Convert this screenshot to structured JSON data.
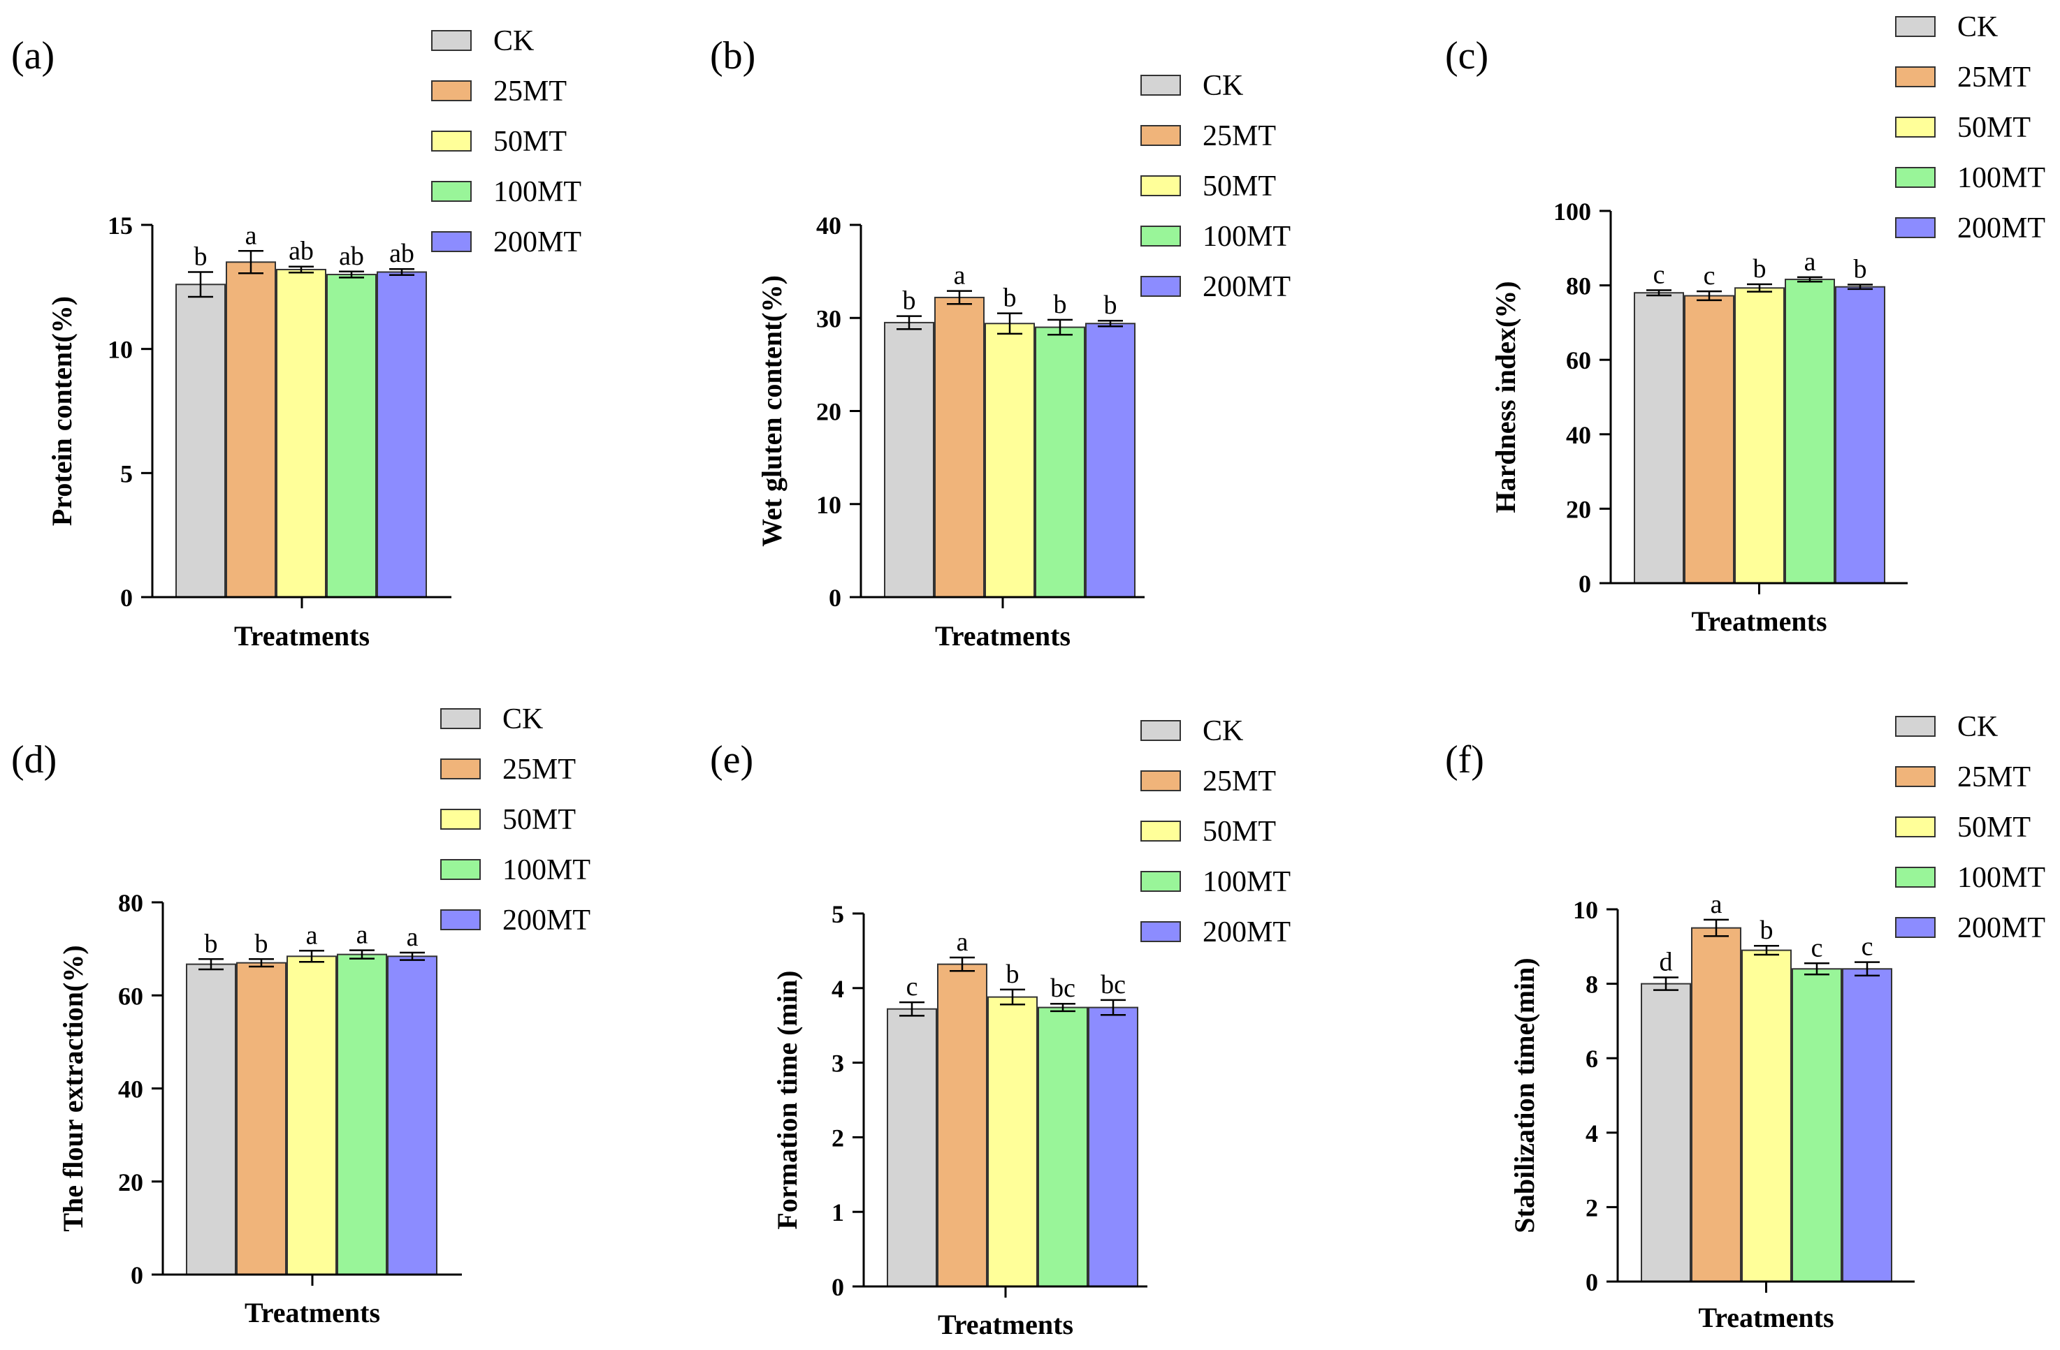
{
  "figure": {
    "series": [
      "CK",
      "25MT",
      "50MT",
      "100MT",
      "200MT"
    ],
    "colors": [
      "#d4d4d4",
      "#f0b47a",
      "#ffff99",
      "#99f599",
      "#8c8cff"
    ]
  },
  "chart_data": [
    {
      "type": "bar",
      "panel": "(a)",
      "title": "",
      "xlabel": "Treatments",
      "ylabel": "Protein content(%)",
      "ylim": [
        0,
        15
      ],
      "yticks": [
        0,
        5,
        10,
        15
      ],
      "categories": [
        "CK",
        "25MT",
        "50MT",
        "100MT",
        "200MT"
      ],
      "values": [
        12.6,
        13.5,
        13.2,
        13.0,
        13.1
      ],
      "errors": [
        0.5,
        0.45,
        0.12,
        0.12,
        0.12
      ],
      "letters": [
        "b",
        "a",
        "ab",
        "ab",
        "ab"
      ]
    },
    {
      "type": "bar",
      "panel": "(b)",
      "title": "",
      "xlabel": "Treatments",
      "ylabel": "Wet gluten content(%)",
      "ylim": [
        0,
        40
      ],
      "yticks": [
        0,
        10,
        20,
        30,
        40
      ],
      "categories": [
        "CK",
        "25MT",
        "50MT",
        "100MT",
        "200MT"
      ],
      "values": [
        29.5,
        32.2,
        29.4,
        29.0,
        29.4
      ],
      "errors": [
        0.7,
        0.7,
        1.1,
        0.8,
        0.3
      ],
      "letters": [
        "b",
        "a",
        "b",
        "b",
        "b"
      ]
    },
    {
      "type": "bar",
      "panel": "(c)",
      "title": "",
      "xlabel": "Treatments",
      "ylabel": "Hardness index(%)",
      "ylim": [
        0,
        100
      ],
      "yticks": [
        0,
        20,
        40,
        60,
        80,
        100
      ],
      "categories": [
        "CK",
        "25MT",
        "50MT",
        "100MT",
        "200MT"
      ],
      "values": [
        78.0,
        77.2,
        79.3,
        81.6,
        79.6
      ],
      "errors": [
        0.7,
        1.2,
        1.0,
        0.6,
        0.6
      ],
      "letters": [
        "c",
        "c",
        "b",
        "a",
        "b"
      ]
    },
    {
      "type": "bar",
      "panel": "(d)",
      "title": "",
      "xlabel": "Treatments",
      "ylabel": "The flour extraction(%)",
      "ylim": [
        0,
        80
      ],
      "yticks": [
        0,
        20,
        40,
        60,
        80
      ],
      "categories": [
        "CK",
        "25MT",
        "50MT",
        "100MT",
        "200MT"
      ],
      "values": [
        66.7,
        67.0,
        68.4,
        68.8,
        68.4
      ],
      "errors": [
        1.1,
        0.8,
        1.2,
        0.9,
        0.8
      ],
      "letters": [
        "b",
        "b",
        "a",
        "a",
        "a"
      ]
    },
    {
      "type": "bar",
      "panel": "(e)",
      "title": "",
      "xlabel": "Treatments",
      "ylabel": "Formation time (min)",
      "ylim": [
        0,
        5
      ],
      "yticks": [
        0,
        1,
        2,
        3,
        4,
        5
      ],
      "categories": [
        "CK",
        "25MT",
        "50MT",
        "100MT",
        "200MT"
      ],
      "values": [
        3.72,
        4.32,
        3.88,
        3.74,
        3.74
      ],
      "errors": [
        0.09,
        0.09,
        0.1,
        0.05,
        0.1
      ],
      "letters": [
        "c",
        "a",
        "b",
        "bc",
        "bc"
      ]
    },
    {
      "type": "bar",
      "panel": "(f)",
      "title": "",
      "xlabel": "Treatments",
      "ylabel": "Stabilization time(min)",
      "ylim": [
        0,
        10
      ],
      "yticks": [
        0,
        2,
        4,
        6,
        8,
        10
      ],
      "categories": [
        "CK",
        "25MT",
        "50MT",
        "100MT",
        "200MT"
      ],
      "values": [
        8.0,
        9.5,
        8.9,
        8.4,
        8.4
      ],
      "errors": [
        0.17,
        0.22,
        0.12,
        0.15,
        0.18
      ],
      "letters": [
        "d",
        "a",
        "b",
        "c",
        "c"
      ]
    }
  ]
}
